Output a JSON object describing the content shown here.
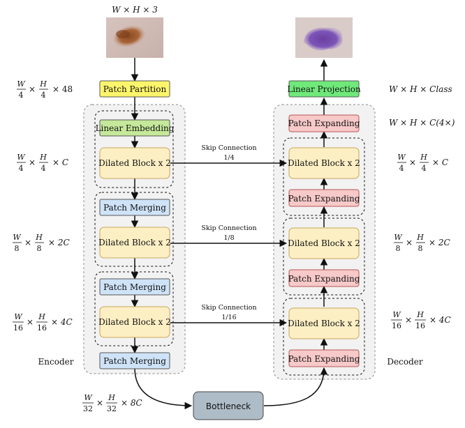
{
  "input_label": "W × H × 3",
  "input_image_icon": "skin-lesion-image",
  "output_image_icon": "lesion-segmentation-mask",
  "encoder": {
    "caption": "Encoder",
    "patch_partition": "Patch Partition",
    "linear_embedding": "Linear Embedding",
    "dilated_block": "Dilated Block x 2",
    "patch_merging": "Patch Merging"
  },
  "decoder": {
    "caption": "Decoder",
    "linear_projection": "Linear Projection",
    "patch_expanding": "Patch Expanding",
    "dilated_block": "Dilated Block x 2"
  },
  "bottleneck": "Bottleneck",
  "skip": {
    "label": "Skip Connection",
    "r1": "1/4",
    "r2": "1/8",
    "r3": "1/16"
  },
  "dims_left": {
    "d1": {
      "w": "W",
      "den": "4",
      "h": "H",
      "tail": "× 48"
    },
    "d2": {
      "w": "W",
      "den": "4",
      "h": "H",
      "tail": "× C"
    },
    "d3": {
      "w": "W",
      "den": "8",
      "h": "H",
      "tail": "× 2C"
    },
    "d4": {
      "w": "W",
      "den": "16",
      "h": "H",
      "tail": "× 4C"
    },
    "d5": {
      "w": "W",
      "den": "32",
      "h": "H",
      "tail": "× 8C"
    }
  },
  "dims_right": {
    "top1": "W × H × Class",
    "top2": "W × H × C(4×)",
    "d2": {
      "w": "W",
      "den": "4",
      "h": "H",
      "tail": "× C"
    },
    "d3": {
      "w": "W",
      "den": "8",
      "h": "H",
      "tail": "× 2C"
    },
    "d4": {
      "w": "W",
      "den": "16",
      "h": "H",
      "tail": "× 4C"
    }
  },
  "colors": {
    "patch_partition": "#fdf56b",
    "linear_embedding": "#c6e89a",
    "dilated_block": "#fdefc4",
    "patch_merging": "#cfe3f8",
    "patch_expanding": "#f7c9c9",
    "linear_projection": "#6fe97a",
    "bottleneck": "#aebcc7",
    "panel": "#f2f2f2"
  }
}
